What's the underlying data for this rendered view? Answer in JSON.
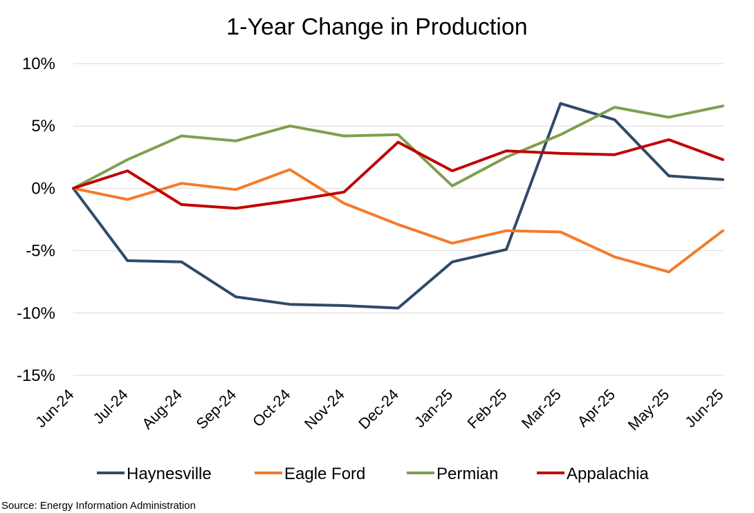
{
  "chart_data": {
    "type": "line",
    "title": "1-Year Change in Production",
    "xlabel": "",
    "ylabel": "",
    "categories": [
      "Jun-24",
      "Jul-24",
      "Aug-24",
      "Sep-24",
      "Oct-24",
      "Nov-24",
      "Dec-24",
      "Jan-25",
      "Feb-25",
      "Mar-25",
      "Apr-25",
      "May-25",
      "Jun-25"
    ],
    "ylim": [
      -15,
      10
    ],
    "yticks": [
      10,
      5,
      0,
      -5,
      -10,
      -15
    ],
    "ytick_labels": [
      "10%",
      "5%",
      "0%",
      "-5%",
      "-10%",
      "-15%"
    ],
    "grid": true,
    "legend_position": "bottom",
    "series": [
      {
        "name": "Haynesville",
        "color": "#2f4a68",
        "values": [
          0,
          -5.8,
          -5.9,
          -8.7,
          -9.3,
          -9.4,
          -9.6,
          -5.9,
          -4.9,
          6.8,
          5.5,
          1.0,
          0.7
        ]
      },
      {
        "name": "Eagle Ford",
        "color": "#f47b2a",
        "values": [
          0,
          -0.9,
          0.4,
          -0.1,
          1.5,
          -1.2,
          -2.9,
          -4.4,
          -3.4,
          -3.5,
          -5.5,
          -6.7,
          -3.4
        ]
      },
      {
        "name": "Permian",
        "color": "#7f9f4f",
        "values": [
          0,
          2.3,
          4.2,
          3.8,
          5.0,
          4.2,
          4.3,
          0.2,
          2.5,
          4.3,
          6.5,
          5.7,
          6.6
        ]
      },
      {
        "name": "Appalachia",
        "color": "#c00000",
        "values": [
          0,
          1.4,
          -1.3,
          -1.6,
          -1.0,
          -0.3,
          3.7,
          1.4,
          3.0,
          2.8,
          2.7,
          3.9,
          2.3
        ]
      }
    ]
  },
  "source": "Source: Energy Information Administration"
}
